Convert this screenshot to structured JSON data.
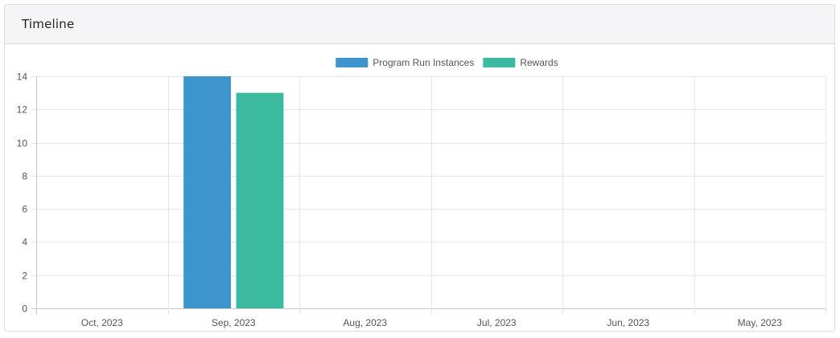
{
  "card": {
    "title": "Timeline"
  },
  "chart_data": {
    "type": "bar",
    "categories": [
      "Oct, 2023",
      "Sep, 2023",
      "Aug, 2023",
      "Jul, 2023",
      "Jun, 2023",
      "May, 2023"
    ],
    "series": [
      {
        "name": "Program Run Instances",
        "values": [
          0,
          14,
          0,
          0,
          0,
          0
        ],
        "color": "#3e95cd"
      },
      {
        "name": "Rewards",
        "values": [
          0,
          13,
          0,
          0,
          0,
          0
        ],
        "color": "#3cba9f"
      }
    ],
    "ylim": [
      0,
      14
    ],
    "yticks": [
      0,
      2,
      4,
      6,
      8,
      10,
      12,
      14
    ],
    "grid": true,
    "legend_position": "top"
  }
}
